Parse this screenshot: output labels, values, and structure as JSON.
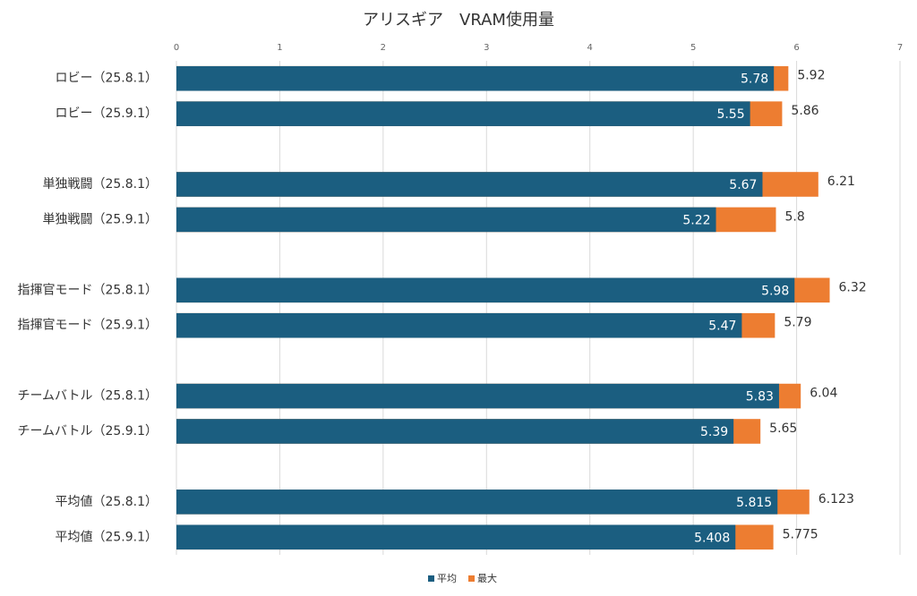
{
  "chart_data": {
    "type": "bar",
    "orientation": "horizontal",
    "overlap": true,
    "title": "アリスギア　VRAM使用量",
    "categories": [
      "ロビー（25.8.1）",
      "ロビー（25.9.1）",
      null,
      "単独戦闘（25.8.1）",
      "単独戦闘（25.9.1）",
      null,
      "指揮官モード（25.8.1）",
      "指揮官モード（25.9.1）",
      null,
      "チームバトル（25.8.1）",
      "チームバトル（25.9.1）",
      null,
      "平均値（25.8.1）",
      "平均値（25.9.1）"
    ],
    "series": [
      {
        "name": "平均",
        "color": "#1b5e80",
        "values": [
          5.78,
          5.55,
          null,
          5.67,
          5.22,
          null,
          5.98,
          5.47,
          null,
          5.83,
          5.39,
          null,
          5.815,
          5.408
        ]
      },
      {
        "name": "最大",
        "color": "#ed7d31",
        "values": [
          5.92,
          5.86,
          null,
          6.21,
          5.8,
          null,
          6.32,
          5.79,
          null,
          6.04,
          5.65,
          null,
          6.123,
          5.775
        ]
      }
    ],
    "xlim": [
      0,
      7
    ],
    "xticks": [
      0,
      1,
      2,
      3,
      4,
      5,
      6,
      7
    ],
    "grid": true,
    "legend": "bottom"
  }
}
